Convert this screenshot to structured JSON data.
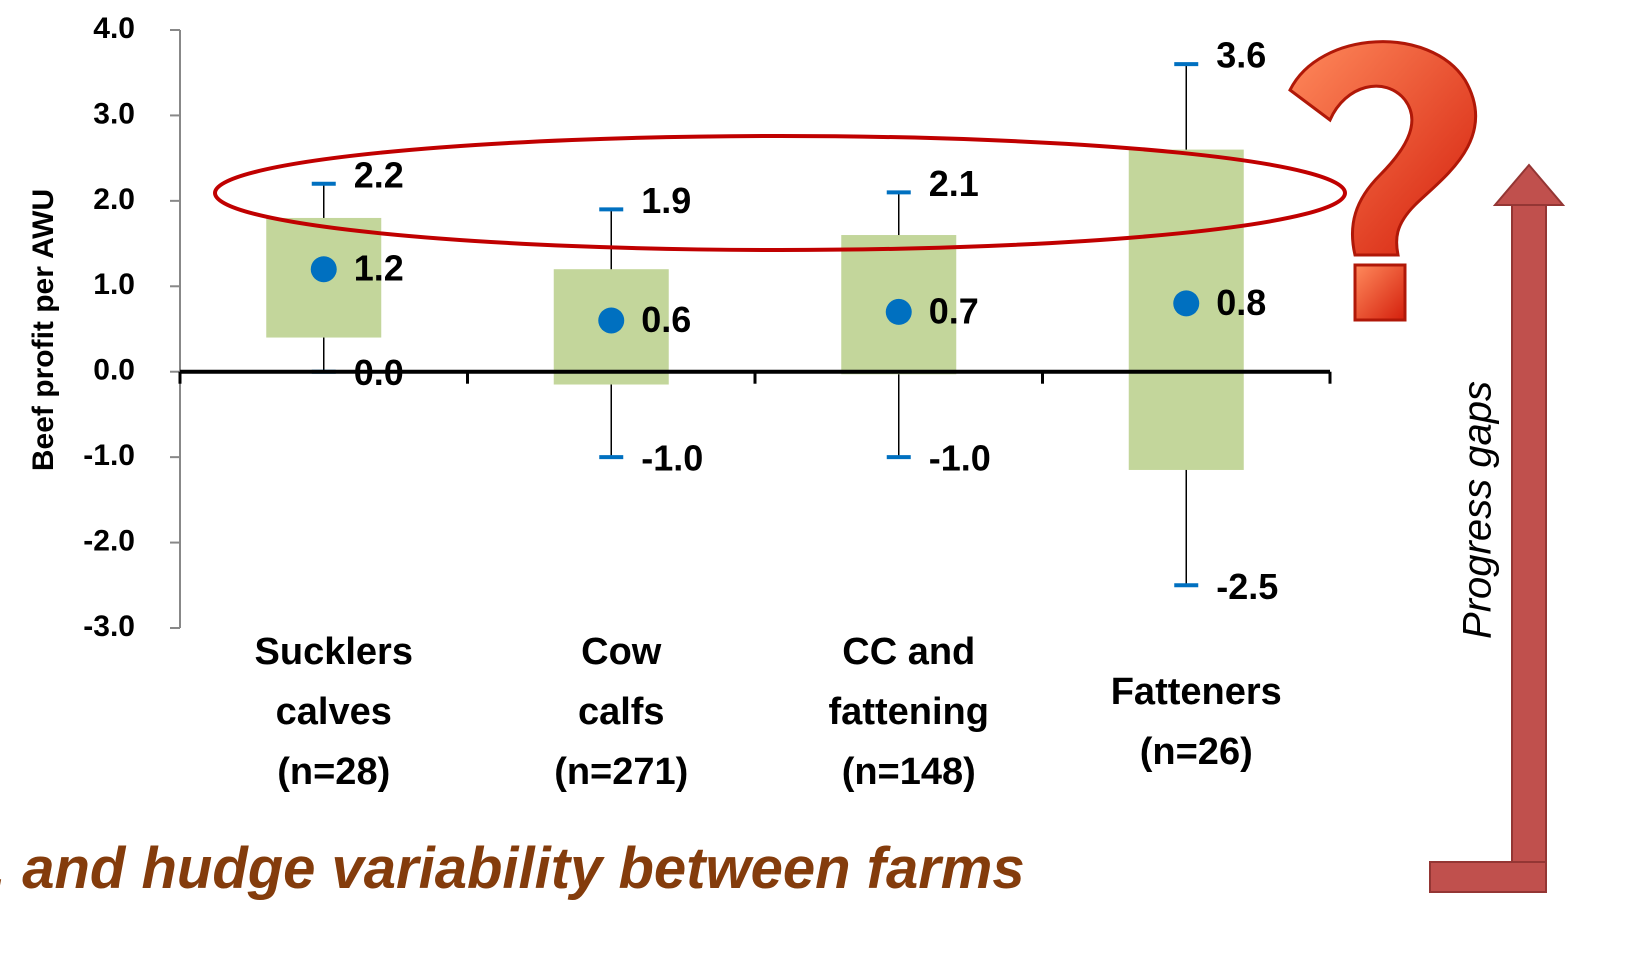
{
  "chart_data": {
    "type": "range-box",
    "y_label": "Beef profit per AWU",
    "caption": ". and hudge variability between farms",
    "side_label": "Progress gaps",
    "categories": [
      "Sucklers\ncalves\n(n=28)",
      "Cow\ncalfs\n(n=271)",
      "CC and\nfattening\n(n=148)",
      "Fatteners\n(n=26)"
    ],
    "box_bottom": [
      0.4,
      -0.15,
      -0.03,
      -1.15
    ],
    "box_top": [
      1.8,
      1.2,
      1.6,
      2.6
    ],
    "box_color": "#c3d69b",
    "means": [
      1.2,
      0.6,
      0.7,
      0.8
    ],
    "mean_color": "#0070c0",
    "maxima": [
      2.2,
      1.9,
      2.1,
      3.6
    ],
    "minima": [
      0.0,
      -1.0,
      -1.0,
      -2.5
    ],
    "minima_value_labels": [
      "0.0",
      "-1.0",
      "-1.0",
      "-2.5"
    ],
    "whisker_color": "#0070c0",
    "ylim": [
      -3,
      4
    ],
    "yticks": [
      {
        "value": -3,
        "label": "-3.0"
      },
      {
        "value": -2,
        "label": "-2.0"
      },
      {
        "value": -1,
        "label": "-1.0"
      },
      {
        "value": 0,
        "label": "0.0"
      },
      {
        "value": 1,
        "label": "1.0"
      },
      {
        "value": 2,
        "label": "2.0"
      },
      {
        "value": 3,
        "label": "3.0"
      },
      {
        "value": 4,
        "label": "4.0"
      }
    ]
  }
}
